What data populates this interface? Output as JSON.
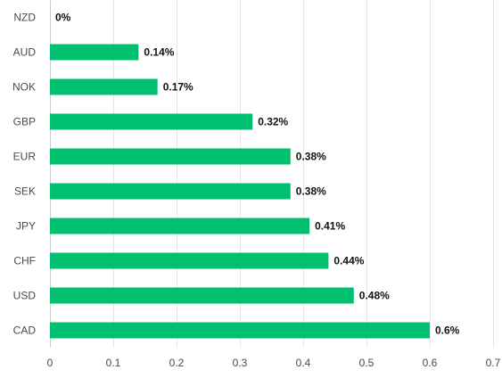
{
  "chart_data": {
    "type": "bar",
    "orientation": "horizontal",
    "categories": [
      "NZD",
      "AUD",
      "NOK",
      "GBP",
      "EUR",
      "SEK",
      "JPY",
      "CHF",
      "USD",
      "CAD"
    ],
    "values": [
      0,
      0.14,
      0.17,
      0.32,
      0.38,
      0.38,
      0.41,
      0.44,
      0.48,
      0.6
    ],
    "data_labels": [
      "0%",
      "0.14%",
      "0.17%",
      "0.32%",
      "0.38%",
      "0.38%",
      "0.41%",
      "0.44%",
      "0.48%",
      "0.6%"
    ],
    "x_ticks": [
      "0",
      "0.1",
      "0.2",
      "0.3",
      "0.4",
      "0.5",
      "0.6",
      "0.7"
    ],
    "xlim": [
      0,
      0.7
    ],
    "title": "",
    "xlabel": "",
    "ylabel": "",
    "grid": "vertical",
    "legend": "none",
    "bar_color": "#00bf6f"
  }
}
